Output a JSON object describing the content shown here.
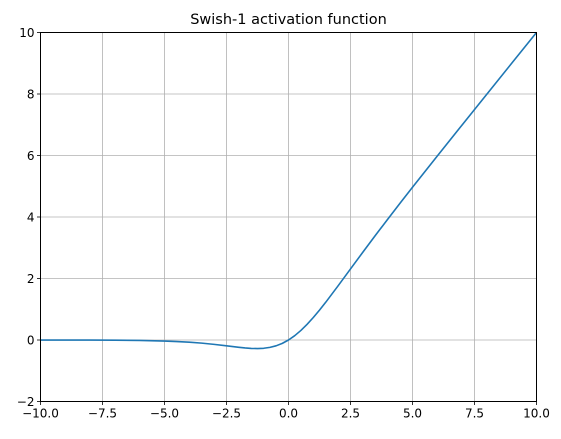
{
  "chart_data": {
    "type": "line",
    "title": "Swish-1 activation function",
    "xlabel": "",
    "ylabel": "",
    "xlim": [
      -10,
      10
    ],
    "ylim": [
      -2,
      10
    ],
    "x_ticks": [
      -10,
      -7.5,
      -5,
      -2.5,
      0,
      2.5,
      5,
      7.5,
      10
    ],
    "x_tick_labels": [
      "−10.0",
      "−7.5",
      "−5.0",
      "−2.5",
      "0.0",
      "2.5",
      "5.0",
      "7.5",
      "10.0"
    ],
    "y_ticks": [
      -2,
      0,
      2,
      4,
      6,
      8,
      10
    ],
    "y_tick_labels": [
      "−2",
      "0",
      "2",
      "4",
      "6",
      "8",
      "10"
    ],
    "grid": true,
    "legend": "none",
    "series": [
      {
        "color": "#1f77b4",
        "x": [
          -10,
          -9,
          -8,
          -7,
          -6,
          -5,
          -4.5,
          -4,
          -3.5,
          -3,
          -2.5,
          -2,
          -1.75,
          -1.5,
          -1.25,
          -1,
          -0.75,
          -0.5,
          -0.25,
          0,
          0.25,
          0.5,
          0.75,
          1,
          1.25,
          1.5,
          2,
          2.5,
          3,
          3.5,
          4,
          4.5,
          5,
          6,
          7,
          8,
          9,
          10
        ],
        "y": [
          -0.0005,
          -0.0011,
          -0.0027,
          -0.0064,
          -0.0148,
          -0.0335,
          -0.0496,
          -0.0719,
          -0.1018,
          -0.1423,
          -0.1896,
          -0.2384,
          -0.2589,
          -0.2742,
          -0.2781,
          -0.2689,
          -0.2392,
          -0.1888,
          -0.1097,
          0,
          0.1403,
          0.3112,
          0.5108,
          0.7311,
          0.9719,
          1.2258,
          1.7616,
          2.3104,
          2.8577,
          3.3983,
          3.9281,
          4.4502,
          4.9665,
          5.9852,
          6.9936,
          7.9973,
          8.9989,
          9.9995
        ]
      }
    ]
  }
}
